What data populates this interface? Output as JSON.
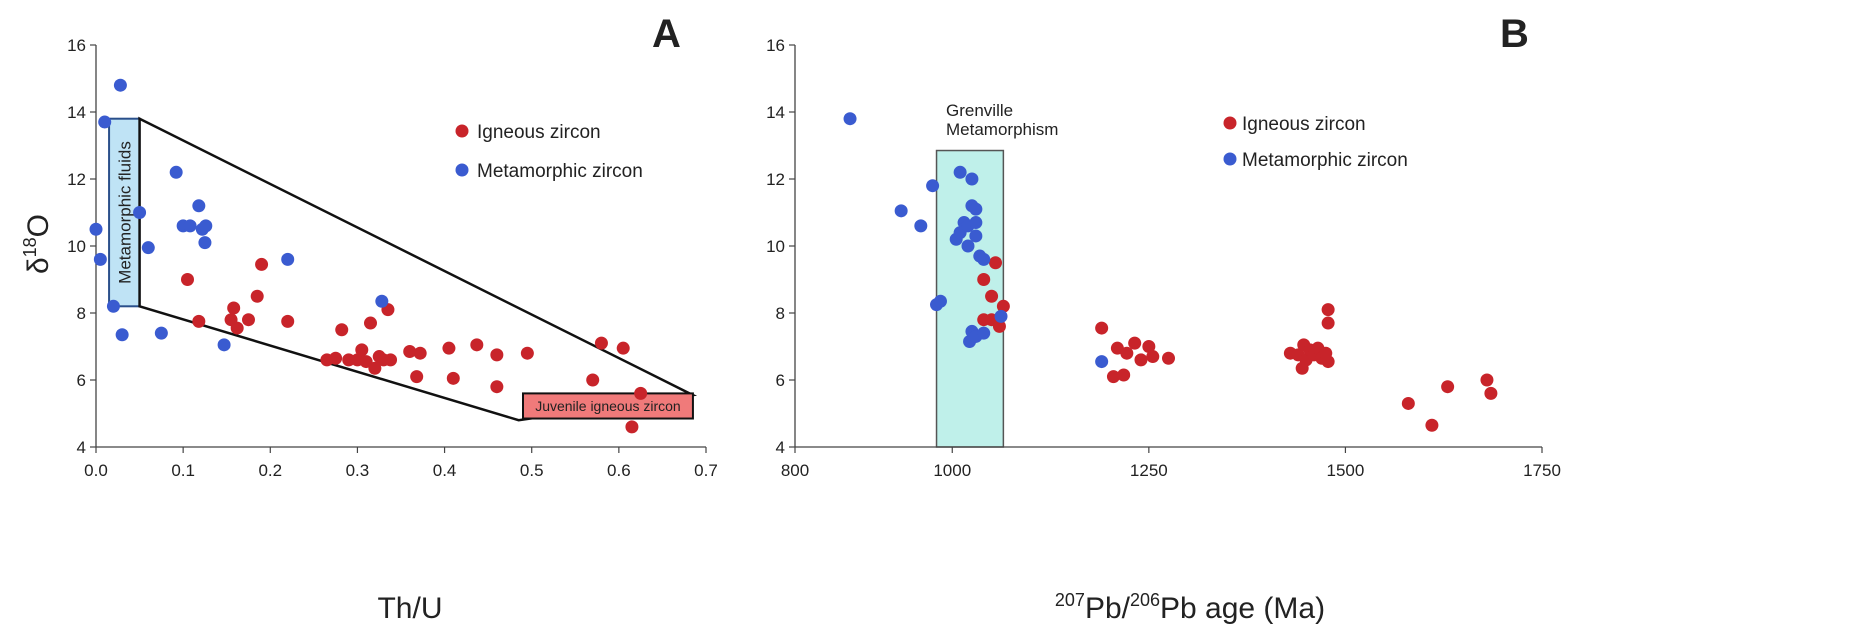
{
  "colors": {
    "igneous": "#c8242a",
    "metamorphic": "#3a5bd0",
    "fluid_box": "#bfe3f5",
    "juvenile_box": "#f07a7a",
    "grenville_box": "#bff0ea"
  },
  "chart_data": [
    {
      "type": "scatter",
      "panel_label": "A",
      "xlabel": "Th/U",
      "ylabel_main": "δ",
      "ylabel_sup": "18",
      "ylabel_end": "O",
      "xlim": [
        0,
        0.7
      ],
      "ylim": [
        4,
        16
      ],
      "x_ticks": [
        "0.0",
        "0.1",
        "0.2",
        "0.3",
        "0.4",
        "0.5",
        "0.6",
        "0.7"
      ],
      "y_ticks": [
        "4",
        "6",
        "8",
        "10",
        "12",
        "14",
        "16"
      ],
      "legend": {
        "position": "top-right",
        "entries": [
          "Igneous zircon",
          "Metamorphic zircon"
        ]
      },
      "annotations": {
        "fluid_box_label": "Metamorphic fluids",
        "juvenile_box_label": "Juvenile igneous zircon"
      },
      "series": [
        {
          "name": "Igneous zircon",
          "points": [
            [
              0.105,
              9.0
            ],
            [
              0.118,
              7.75
            ],
            [
              0.155,
              7.8
            ],
            [
              0.158,
              8.15
            ],
            [
              0.162,
              7.55
            ],
            [
              0.175,
              7.8
            ],
            [
              0.185,
              8.5
            ],
            [
              0.19,
              9.45
            ],
            [
              0.22,
              7.75
            ],
            [
              0.265,
              6.6
            ],
            [
              0.275,
              6.65
            ],
            [
              0.282,
              7.5
            ],
            [
              0.29,
              6.6
            ],
            [
              0.3,
              6.6
            ],
            [
              0.305,
              6.9
            ],
            [
              0.31,
              6.55
            ],
            [
              0.315,
              7.7
            ],
            [
              0.32,
              6.35
            ],
            [
              0.325,
              6.7
            ],
            [
              0.33,
              6.6
            ],
            [
              0.335,
              8.1
            ],
            [
              0.338,
              6.6
            ],
            [
              0.36,
              6.85
            ],
            [
              0.368,
              6.1
            ],
            [
              0.372,
              6.8
            ],
            [
              0.405,
              6.95
            ],
            [
              0.41,
              6.05
            ],
            [
              0.437,
              7.05
            ],
            [
              0.46,
              5.8
            ],
            [
              0.46,
              6.75
            ],
            [
              0.495,
              6.8
            ],
            [
              0.57,
              6.0
            ],
            [
              0.58,
              7.1
            ],
            [
              0.605,
              6.95
            ],
            [
              0.615,
              4.6
            ],
            [
              0.625,
              5.6
            ]
          ]
        },
        {
          "name": "Metamorphic zircon",
          "points": [
            [
              0.0,
              10.5
            ],
            [
              0.005,
              9.6
            ],
            [
              0.01,
              13.7
            ],
            [
              0.02,
              8.2
            ],
            [
              0.028,
              14.8
            ],
            [
              0.03,
              7.35
            ],
            [
              0.05,
              11.0
            ],
            [
              0.06,
              9.95
            ],
            [
              0.075,
              7.4
            ],
            [
              0.092,
              12.2
            ],
            [
              0.1,
              10.6
            ],
            [
              0.108,
              10.6
            ],
            [
              0.118,
              11.2
            ],
            [
              0.122,
              10.5
            ],
            [
              0.125,
              10.1
            ],
            [
              0.126,
              10.6
            ],
            [
              0.147,
              7.05
            ],
            [
              0.22,
              9.6
            ],
            [
              0.328,
              8.35
            ]
          ]
        }
      ]
    },
    {
      "type": "scatter",
      "panel_label": "B",
      "xlabel_sup1": "207",
      "xlabel_mid": "Pb/",
      "xlabel_sup2": "206",
      "xlabel_end": "Pb age (Ma)",
      "xlim": [
        800,
        1750
      ],
      "ylim": [
        4,
        16
      ],
      "x_ticks": [
        "800",
        "1000",
        "1250",
        "1500",
        "1750"
      ],
      "y_ticks": [
        "4",
        "6",
        "8",
        "10",
        "12",
        "14",
        "16"
      ],
      "legend": {
        "position": "top-right",
        "entries": [
          "Igneous zircon",
          "Metamorphic zircon"
        ]
      },
      "annotations": {
        "grenville_line1": "Grenville",
        "grenville_line2": "Metamorphism",
        "grenville_range": [
          980,
          1065
        ]
      },
      "series": [
        {
          "name": "Igneous zircon",
          "points": [
            [
              1040,
              9.0
            ],
            [
              1055,
              9.5
            ],
            [
              1050,
              8.5
            ],
            [
              1065,
              8.2
            ],
            [
              1040,
              7.8
            ],
            [
              1050,
              7.8
            ],
            [
              1060,
              7.6
            ],
            [
              1190,
              7.55
            ],
            [
              1210,
              6.95
            ],
            [
              1222,
              6.8
            ],
            [
              1232,
              7.1
            ],
            [
              1240,
              6.6
            ],
            [
              1250,
              7.0
            ],
            [
              1255,
              6.7
            ],
            [
              1275,
              6.65
            ],
            [
              1205,
              6.1
            ],
            [
              1218,
              6.15
            ],
            [
              1430,
              6.8
            ],
            [
              1440,
              6.75
            ],
            [
              1447,
              7.05
            ],
            [
              1450,
              6.6
            ],
            [
              1455,
              6.9
            ],
            [
              1460,
              6.75
            ],
            [
              1465,
              6.95
            ],
            [
              1470,
              6.65
            ],
            [
              1475,
              6.8
            ],
            [
              1478,
              6.55
            ],
            [
              1478,
              7.7
            ],
            [
              1478,
              8.1
            ],
            [
              1445,
              6.35
            ],
            [
              1580,
              5.3
            ],
            [
              1610,
              4.65
            ],
            [
              1630,
              5.8
            ],
            [
              1680,
              6.0
            ],
            [
              1685,
              5.6
            ]
          ]
        },
        {
          "name": "Metamorphic zircon",
          "points": [
            [
              870,
              13.8
            ],
            [
              935,
              11.05
            ],
            [
              960,
              10.6
            ],
            [
              975,
              11.8
            ],
            [
              980,
              8.25
            ],
            [
              985,
              8.35
            ],
            [
              1005,
              10.2
            ],
            [
              1010,
              10.4
            ],
            [
              1010,
              12.2
            ],
            [
              1015,
              10.7
            ],
            [
              1020,
              10.6
            ],
            [
              1020,
              10.0
            ],
            [
              1025,
              11.2
            ],
            [
              1025,
              12.0
            ],
            [
              1030,
              10.7
            ],
            [
              1030,
              11.1
            ],
            [
              1030,
              10.3
            ],
            [
              1035,
              9.7
            ],
            [
              1040,
              9.6
            ],
            [
              1025,
              7.45
            ],
            [
              1022,
              7.15
            ],
            [
              1030,
              7.3
            ],
            [
              1040,
              7.4
            ],
            [
              1062,
              7.9
            ],
            [
              1190,
              6.55
            ]
          ]
        }
      ]
    }
  ]
}
